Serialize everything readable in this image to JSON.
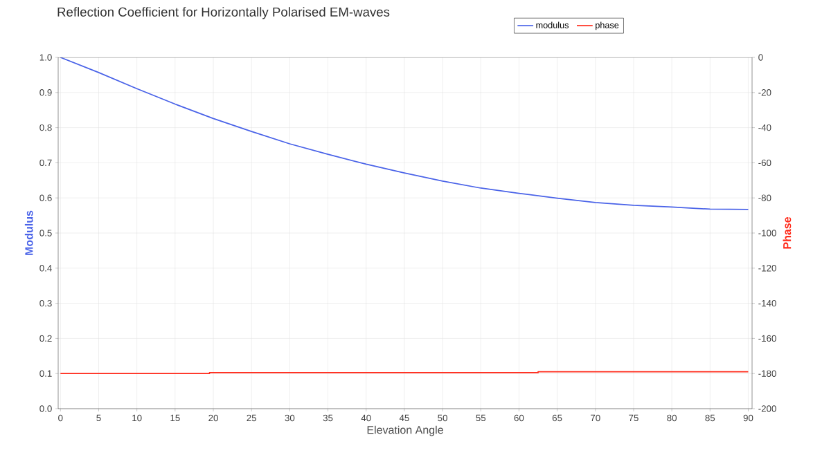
{
  "chart_data": {
    "type": "line",
    "title": "Reflection Coefficient for Horizontally Polarised EM-waves",
    "xlabel": "Elevation Angle",
    "ylabel": "Modulus",
    "y2label": "Phase",
    "xlim": [
      -0.3,
      90.5
    ],
    "xticks": [
      0,
      5,
      10,
      15,
      20,
      25,
      30,
      35,
      40,
      45,
      50,
      55,
      60,
      65,
      70,
      75,
      80,
      85,
      90
    ],
    "ylim": [
      0,
      1
    ],
    "yticks": [
      {
        "value": 0,
        "label": "0.0"
      },
      0.1,
      0.2,
      0.3,
      0.4,
      0.5,
      0.6,
      0.7,
      0.8,
      0.9,
      {
        "value": 1,
        "label": "1.0"
      }
    ],
    "y2lim": [
      -200,
      0
    ],
    "y2ticks": [
      -200,
      -180,
      -160,
      -140,
      -120,
      -100,
      -80,
      -60,
      -40,
      -20,
      0
    ],
    "grid": true,
    "legend": "top",
    "series": [
      {
        "name": "modulus",
        "color": "#4a63e8",
        "x": [
          0,
          5,
          10,
          15,
          20,
          25,
          30,
          35,
          40,
          45,
          50,
          55,
          60,
          65,
          70,
          75,
          80,
          85,
          90
        ],
        "values": [
          1.0,
          0.957,
          0.911,
          0.867,
          0.826,
          0.789,
          0.754,
          0.724,
          0.696,
          0.671,
          0.648,
          0.628,
          0.613,
          0.599,
          0.587,
          0.579,
          0.574,
          0.568,
          0.567
        ]
      },
      {
        "name": "phase",
        "color": "#ff2a1a",
        "type": "step",
        "axis": "y2",
        "x": [
          0,
          19.5,
          62.5,
          90
        ],
        "values": [
          -180,
          -179.5,
          -179,
          -179
        ]
      }
    ]
  }
}
